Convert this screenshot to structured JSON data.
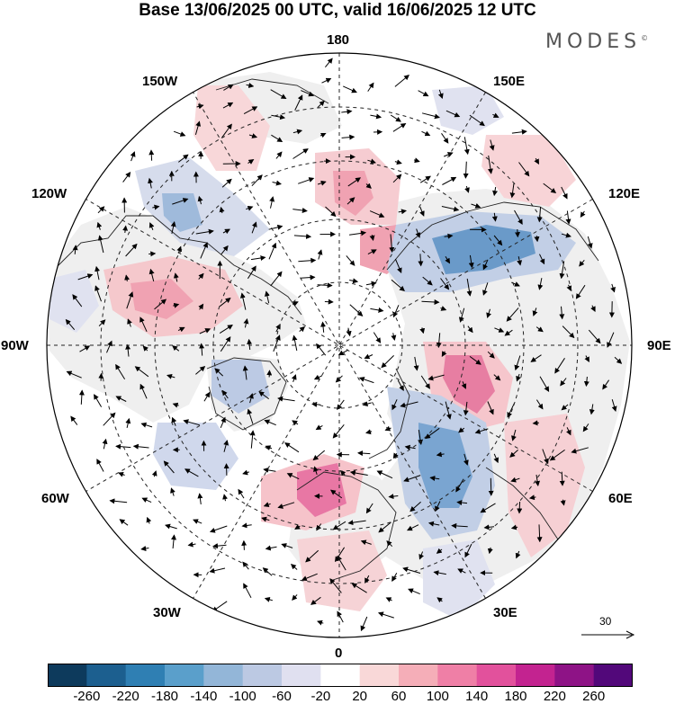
{
  "header": {
    "title": "Base 13/06/2025 00 UTC, valid 16/06/2025 12 UTC",
    "brand": "MODES",
    "brand_mark": "©"
  },
  "map": {
    "projection": "north polar stereographic",
    "longitude_labels": {
      "lon_180": "180",
      "lon_150e": "150E",
      "lon_120e": "120E",
      "lon_90e": "90E",
      "lon_60e": "60E",
      "lon_30e": "30E",
      "lon_0": "0",
      "lon_30w": "30W",
      "lon_60w": "60W",
      "lon_90w": "90W",
      "lon_120w": "120W",
      "lon_150w": "150W"
    },
    "colors": {
      "background": "#ffffff",
      "land_fill": "#f0f0f0",
      "coast": "#222222",
      "grid": "#222222"
    }
  },
  "wind_scale": {
    "label": "30"
  },
  "colorbar": {
    "colors": [
      "#0d3a5c",
      "#1c5f8f",
      "#2f7fb3",
      "#5a9fcb",
      "#93b6d8",
      "#bcc9e3",
      "#e0e0f0",
      "#ffffff",
      "#f9d8d8",
      "#f5aeb8",
      "#ef7fa6",
      "#e2519c",
      "#c32390",
      "#8e1386",
      "#52087a"
    ],
    "labels": [
      "-260",
      "-220",
      "-180",
      "-140",
      "-100",
      "-60",
      "-20",
      "20",
      "60",
      "100",
      "140",
      "180",
      "220",
      "260"
    ]
  }
}
